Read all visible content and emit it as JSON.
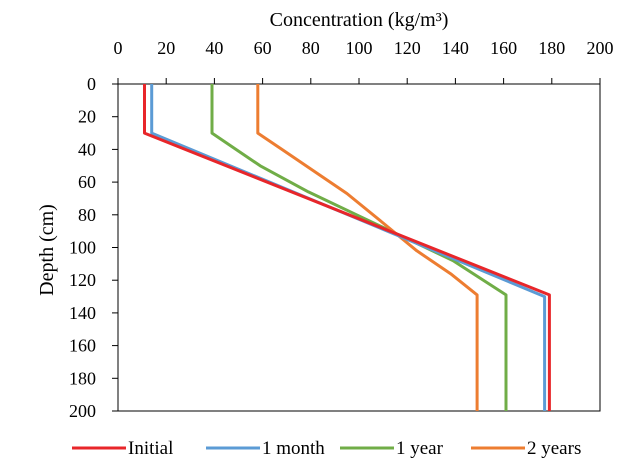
{
  "chart_data": {
    "type": "line",
    "orientation": "vertical-profile",
    "title": "",
    "xlabel": "Concentration (kg/m³)",
    "ylabel": "Depth (cm)",
    "x_axis_position": "top",
    "y_axis_inverted": true,
    "xlim": [
      0,
      200
    ],
    "ylim": [
      0,
      200
    ],
    "x_ticks": [
      "0",
      "20",
      "40",
      "60",
      "80",
      "100",
      "120",
      "140",
      "160",
      "180",
      "200"
    ],
    "y_ticks": [
      "0",
      "20",
      "40",
      "60",
      "80",
      "100",
      "120",
      "140",
      "160",
      "180",
      "200"
    ],
    "grid": false,
    "legend_position": "bottom",
    "series": [
      {
        "name": "Initial",
        "color": "#e8262a",
        "points": [
          [
            11,
            0
          ],
          [
            11,
            30
          ],
          [
            179,
            129
          ],
          [
            179,
            200
          ]
        ]
      },
      {
        "name": "1 month",
        "color": "#5b9bd5",
        "points": [
          [
            14,
            0
          ],
          [
            14,
            30
          ],
          [
            177,
            130
          ],
          [
            177,
            200
          ]
        ]
      },
      {
        "name": "1 year",
        "color": "#70ad47",
        "points": [
          [
            39,
            0
          ],
          [
            39,
            30
          ],
          [
            59,
            50
          ],
          [
            79,
            66
          ],
          [
            99,
            80
          ],
          [
            119,
            94
          ],
          [
            139,
            108
          ],
          [
            161,
            129
          ],
          [
            161,
            200
          ]
        ]
      },
      {
        "name": "2 years",
        "color": "#ed7d31",
        "points": [
          [
            58,
            0
          ],
          [
            58,
            30
          ],
          [
            68,
            40
          ],
          [
            80,
            52
          ],
          [
            95,
            67
          ],
          [
            110,
            85
          ],
          [
            124,
            102
          ],
          [
            138,
            116
          ],
          [
            149,
            129
          ],
          [
            149,
            200
          ]
        ]
      }
    ]
  }
}
